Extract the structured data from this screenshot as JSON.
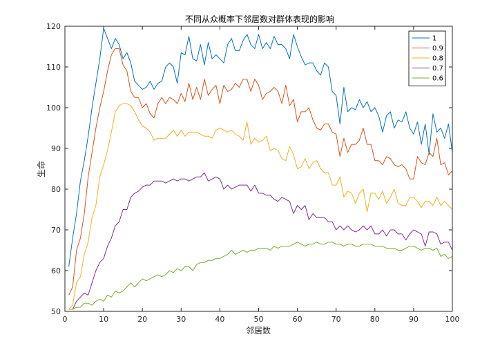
{
  "chart_data": {
    "type": "line",
    "title": "不同从众概率下邻居数对群体表现的影响",
    "xlabel": "邻居数",
    "ylabel": "生命",
    "xlim": [
      0,
      100
    ],
    "ylim": [
      50,
      120
    ],
    "xticks": [
      0,
      10,
      20,
      30,
      40,
      50,
      60,
      70,
      80,
      90,
      100
    ],
    "yticks": [
      50,
      60,
      70,
      80,
      90,
      100,
      110,
      120
    ],
    "xtick_labels": [
      "0",
      "10",
      "20",
      "30",
      "40",
      "50",
      "60",
      "70",
      "80",
      "90",
      "100"
    ],
    "ytick_labels": [
      "50",
      "60",
      "70",
      "80",
      "90",
      "100",
      "110",
      "120"
    ],
    "grid": false,
    "legend_position": "top-right",
    "x": [
      1,
      2,
      3,
      4,
      5,
      6,
      7,
      8,
      9,
      10,
      11,
      12,
      13,
      14,
      15,
      16,
      17,
      18,
      19,
      20,
      21,
      22,
      23,
      24,
      25,
      26,
      27,
      28,
      29,
      30,
      31,
      32,
      33,
      34,
      35,
      36,
      37,
      38,
      39,
      40,
      41,
      42,
      43,
      44,
      45,
      46,
      47,
      48,
      49,
      50,
      51,
      52,
      53,
      54,
      55,
      56,
      57,
      58,
      59,
      60,
      61,
      62,
      63,
      64,
      65,
      66,
      67,
      68,
      69,
      70,
      71,
      72,
      73,
      74,
      75,
      76,
      77,
      78,
      79,
      80,
      81,
      82,
      83,
      84,
      85,
      86,
      87,
      88,
      89,
      90,
      91,
      92,
      93,
      94,
      95,
      96,
      97,
      98,
      99,
      100
    ],
    "series": [
      {
        "name": "1",
        "color": "#0072BD",
        "values": [
          61,
          68,
          74,
          82,
          87,
          93,
          100,
          106,
          112,
          119.5,
          117,
          114.5,
          117,
          115.5,
          112,
          113.5,
          111,
          106.5,
          105.5,
          104.5,
          105,
          106.5,
          104.5,
          106,
          106.5,
          110,
          111,
          110,
          106,
          113.5,
          113,
          117.5,
          112,
          111.5,
          115.5,
          110.5,
          116,
          112,
          113,
          112,
          111,
          115.5,
          117,
          114,
          114,
          116.5,
          118,
          115.5,
          114.5,
          118,
          114.5,
          116,
          114.5,
          117.5,
          115.5,
          115.5,
          114.5,
          112,
          118,
          115,
          112.5,
          110.5,
          111,
          111,
          109,
          108,
          111,
          110,
          104,
          103,
          96,
          105,
          99,
          100,
          99.5,
          102,
          100,
          101.5,
          99,
          100,
          98,
          94,
          98,
          99,
          95,
          97,
          96.5,
          99,
          95,
          93.5,
          96.5,
          91,
          96,
          88.5,
          98.5,
          94,
          95,
          92.5,
          96,
          89
        ]
      },
      {
        "name": "0.9",
        "color": "#D95319",
        "values": [
          54,
          56,
          65,
          68,
          74,
          83,
          89,
          95,
          100,
          104,
          109,
          113,
          114.5,
          114.5,
          110.5,
          109,
          104,
          102.5,
          102.5,
          100,
          101,
          98.5,
          97.5,
          101,
          102.5,
          101,
          102.5,
          102,
          101,
          103.5,
          101.5,
          106,
          102,
          105,
          102,
          107,
          103,
          104.5,
          105.5,
          101,
          105.5,
          104,
          104.5,
          106,
          105,
          107,
          107,
          104,
          107,
          105.5,
          102,
          103.5,
          104,
          105,
          104,
          101,
          105.5,
          100.5,
          102,
          96.5,
          99,
          99,
          100,
          97,
          95,
          94.5,
          96,
          96,
          94,
          93.5,
          88,
          92.5,
          89,
          91,
          91,
          92,
          95,
          91,
          91,
          87,
          87,
          86,
          88,
          87.5,
          86,
          85.5,
          86,
          85,
          82.5,
          82.5,
          88,
          86.5,
          86,
          89,
          88,
          92.5,
          86,
          86.5,
          83.5,
          84.5
        ]
      },
      {
        "name": "0.8",
        "color": "#EDB120",
        "values": [
          50.5,
          51.5,
          57,
          58.5,
          64,
          67,
          73,
          76,
          83,
          86,
          89.5,
          94,
          99,
          100.5,
          101,
          101,
          100.5,
          99,
          97,
          95.5,
          95,
          94,
          92,
          92.5,
          92.5,
          92.5,
          93.5,
          94.5,
          93,
          94.5,
          93,
          94,
          94,
          94,
          93.5,
          93,
          93,
          92.5,
          94.5,
          95,
          94.5,
          94,
          94.5,
          93.5,
          93,
          92,
          96.5,
          91,
          92.5,
          91.5,
          92,
          93,
          89.5,
          90,
          89.5,
          87.5,
          87,
          90.5,
          88.5,
          85,
          85.5,
          87.5,
          85,
          86.5,
          87,
          85,
          84,
          84,
          81,
          81,
          83,
          78,
          79.5,
          79,
          76.5,
          79,
          80,
          74.5,
          79,
          79,
          77.5,
          79.5,
          76.5,
          78,
          80,
          76.5,
          76,
          76,
          78,
          78,
          77,
          75.5,
          77,
          77,
          76,
          78,
          76,
          77,
          76,
          75
        ]
      },
      {
        "name": "0.7",
        "color": "#7E2F8E",
        "values": [
          50.5,
          50.5,
          52.5,
          53.5,
          54.5,
          54,
          57,
          60,
          62,
          63,
          66,
          68,
          71,
          72,
          75,
          75,
          78,
          79,
          79.5,
          80.5,
          81,
          81,
          82,
          82,
          82,
          81.5,
          82,
          82.5,
          82,
          82.5,
          82.5,
          82,
          82.5,
          83,
          83,
          84,
          82,
          82.5,
          83,
          82.5,
          80,
          81,
          80,
          80.5,
          81,
          81,
          81,
          79.5,
          81,
          79,
          79,
          78.5,
          78.5,
          77.5,
          77,
          78,
          77.5,
          77,
          74,
          76,
          75,
          76,
          72.5,
          74,
          73,
          73,
          73,
          72,
          72,
          70,
          71,
          70,
          71,
          70,
          69.5,
          70,
          71,
          70,
          71,
          69,
          69,
          70,
          68.5,
          70,
          70,
          69,
          69,
          67.5,
          69,
          70,
          69.5,
          69,
          66,
          69.5,
          69.5,
          69,
          66.5,
          67,
          67,
          65
        ]
      },
      {
        "name": "0.6",
        "color": "#77AC30",
        "values": [
          50.5,
          50.5,
          51,
          51,
          52,
          52,
          51.5,
          52.5,
          53,
          52.5,
          54,
          53.5,
          55,
          54.5,
          55,
          56,
          57,
          56,
          57,
          58,
          57.5,
          58,
          58.5,
          59,
          58.5,
          59,
          60,
          59.5,
          60.5,
          60,
          61,
          61,
          60,
          61.5,
          62,
          62,
          62.5,
          62.5,
          63,
          63,
          63.5,
          64,
          65,
          64,
          64.5,
          65,
          64.5,
          65,
          65,
          65.5,
          65.5,
          65.5,
          65,
          66,
          65.5,
          66,
          66,
          66,
          66.5,
          67,
          66.5,
          66,
          66.5,
          66.5,
          67,
          66.5,
          66.5,
          67,
          67,
          66.5,
          66.5,
          66,
          66.5,
          66.5,
          66,
          66,
          66.5,
          66.5,
          66.5,
          66,
          66,
          66,
          65.5,
          65.5,
          65.5,
          65,
          65,
          65.5,
          66,
          66,
          65.5,
          65,
          65.5,
          65.5,
          65,
          65.5,
          63.5,
          64,
          63,
          63.5
        ]
      }
    ]
  }
}
